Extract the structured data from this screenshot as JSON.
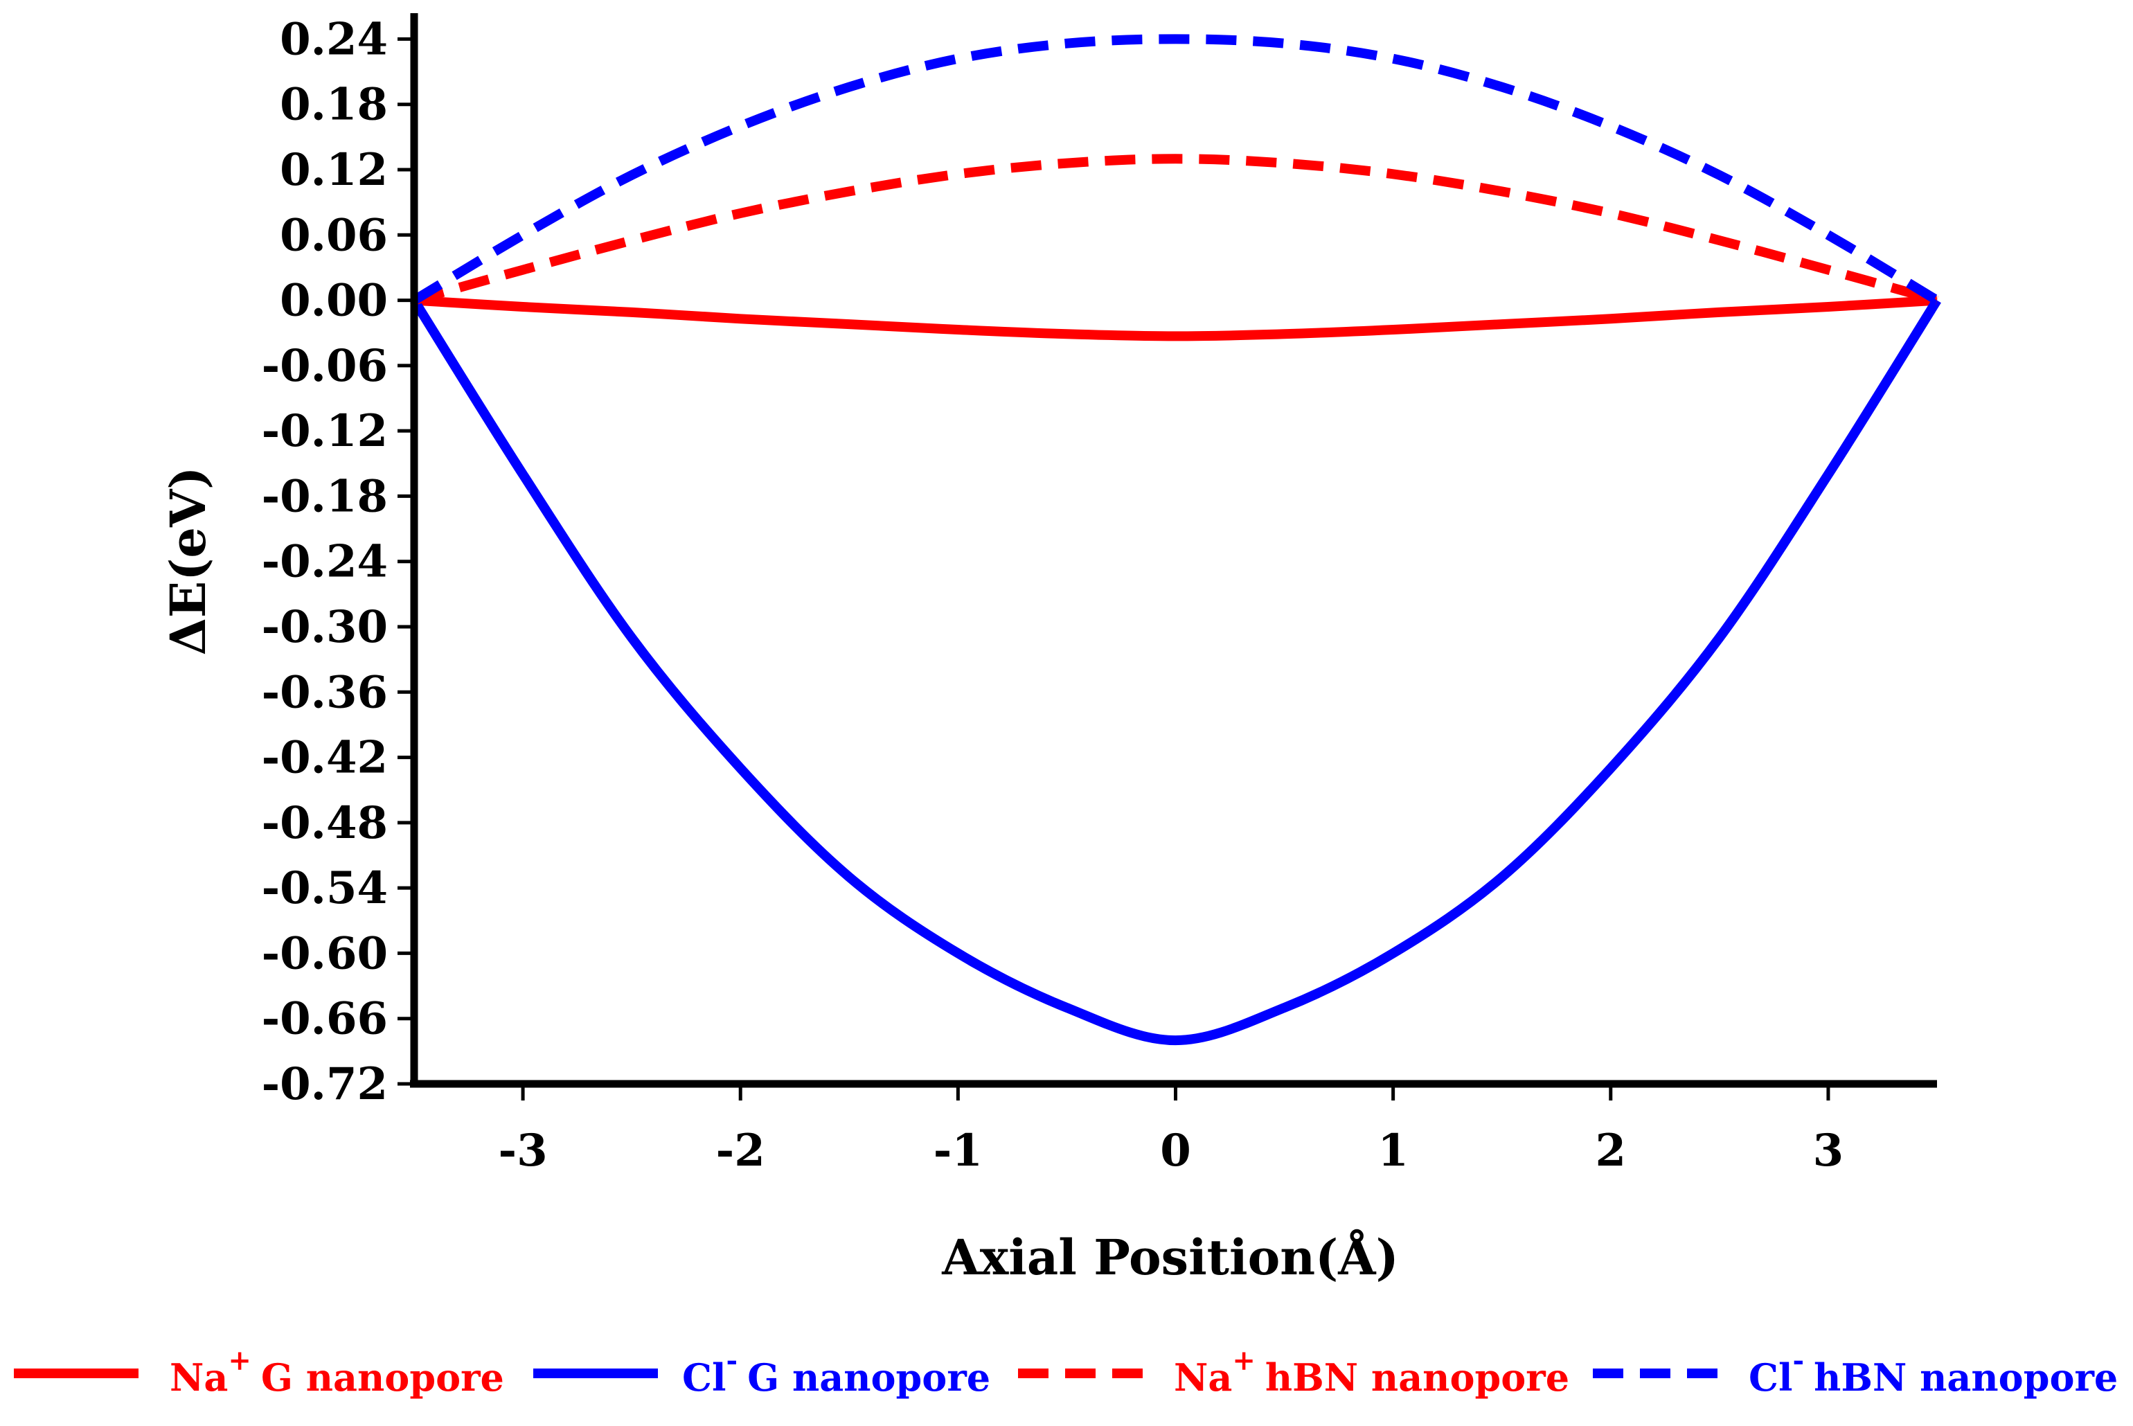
{
  "chart_data": {
    "type": "line",
    "xlabel": "Axial Position(Å)",
    "ylabel": "ΔE(eV)",
    "xlim": [
      -3.5,
      3.5
    ],
    "ylim": [
      -0.72,
      0.26
    ],
    "xticks": [
      -3,
      -2,
      -1,
      0,
      1,
      2,
      3
    ],
    "xtick_labels": [
      "-3",
      "-2",
      "-1",
      "0",
      "1",
      "2",
      "3"
    ],
    "yticks": [
      0.24,
      0.18,
      0.12,
      0.06,
      0.0,
      -0.06,
      -0.12,
      -0.18,
      -0.24,
      -0.3,
      -0.36,
      -0.42,
      -0.48,
      -0.54,
      -0.6,
      -0.66,
      -0.72
    ],
    "ytick_labels": [
      "0.24",
      "0.18",
      "0.12",
      "0.06",
      "0.00",
      "-0.06",
      "-0.12",
      "-0.18",
      "-0.24",
      "-0.30",
      "-0.36",
      "-0.42",
      "-0.48",
      "-0.54",
      "-0.60",
      "-0.66",
      "-0.72"
    ],
    "grid": false,
    "legend_position": "bottom",
    "series": [
      {
        "name": "G nanopore",
        "ion": "Na",
        "charge": "+",
        "color": "#ff0000",
        "dash": "solid",
        "x": [
          -3.5,
          -3,
          -2.5,
          -2,
          -1.5,
          -1,
          -0.5,
          0,
          0.5,
          1,
          1.5,
          2,
          2.5,
          3,
          3.5
        ],
        "y": [
          0.0,
          -0.006,
          -0.011,
          -0.017,
          -0.022,
          -0.027,
          -0.031,
          -0.033,
          -0.031,
          -0.027,
          -0.022,
          -0.017,
          -0.011,
          -0.006,
          0.0
        ]
      },
      {
        "name": "G nanopore",
        "ion": "Cl",
        "charge": "-",
        "color": "#0000ff",
        "dash": "solid",
        "x": [
          -3.5,
          -3,
          -2.5,
          -2,
          -1.5,
          -1,
          -0.5,
          0,
          0.5,
          1,
          1.5,
          2,
          2.5,
          3,
          3.5
        ],
        "y": [
          0.0,
          -0.16,
          -0.31,
          -0.43,
          -0.53,
          -0.6,
          -0.65,
          -0.68,
          -0.65,
          -0.6,
          -0.53,
          -0.43,
          -0.31,
          -0.16,
          0.0
        ]
      },
      {
        "name": "hBN nanopore",
        "ion": "Na",
        "charge": "+",
        "color": "#ff0000",
        "dash": "dashed",
        "x": [
          -3.5,
          -3,
          -2.5,
          -2,
          -1.5,
          -1,
          -0.5,
          0,
          0.5,
          1,
          1.5,
          2,
          2.5,
          3,
          3.5
        ],
        "y": [
          0.0,
          0.028,
          0.055,
          0.08,
          0.1,
          0.116,
          0.126,
          0.13,
          0.126,
          0.116,
          0.1,
          0.08,
          0.055,
          0.028,
          0.0
        ]
      },
      {
        "name": "hBN nanopore",
        "ion": "Cl",
        "charge": "-",
        "color": "#0000ff",
        "dash": "dashed",
        "x": [
          -3.5,
          -3,
          -2.5,
          -2,
          -1.5,
          -1,
          -0.5,
          0,
          0.5,
          1,
          1.5,
          2,
          2.5,
          3,
          3.5
        ],
        "y": [
          0.0,
          0.06,
          0.115,
          0.16,
          0.196,
          0.222,
          0.236,
          0.24,
          0.236,
          0.222,
          0.196,
          0.16,
          0.115,
          0.06,
          0.0
        ]
      }
    ]
  }
}
